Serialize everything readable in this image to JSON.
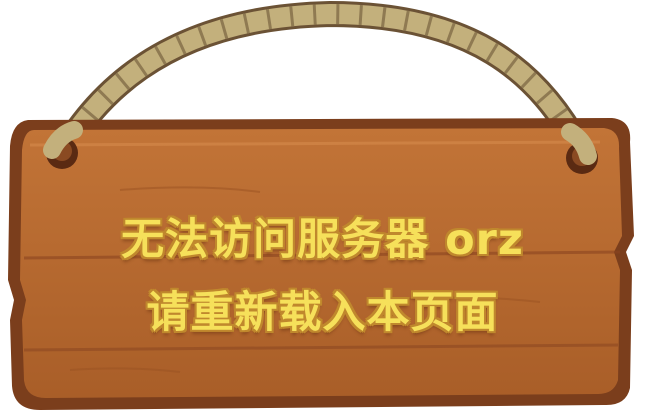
{
  "sign": {
    "line1": "无法访问服务器 orz",
    "line2": "请重新载入本页面"
  },
  "colors": {
    "board": "#b5682e",
    "board_edge": "#7a3d1a",
    "text": "#f6e05a",
    "rope": "#bfae7a"
  },
  "icons": [
    "rope",
    "nail",
    "wooden-sign"
  ]
}
